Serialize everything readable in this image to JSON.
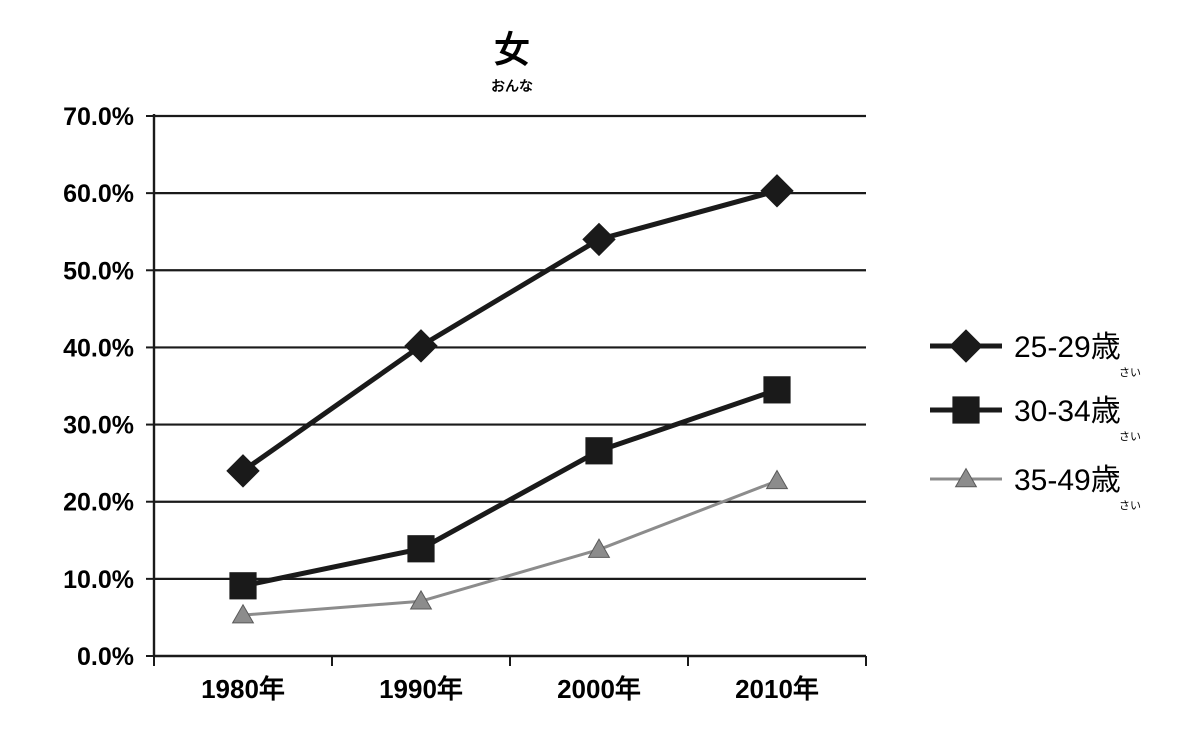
{
  "chart_data": {
    "type": "line",
    "title": "女",
    "title_ruby": "おんな",
    "categories": [
      "1980年",
      "1990年",
      "2000年",
      "2010年"
    ],
    "yticks": [
      "0.0%",
      "10.0%",
      "20.0%",
      "30.0%",
      "40.0%",
      "50.0%",
      "60.0%",
      "70.0%"
    ],
    "ylim": [
      0,
      70
    ],
    "grid": true,
    "legend_position": "right",
    "series": [
      {
        "name": "25-29歳",
        "name_ruby": "さい",
        "marker": "diamond",
        "color": "#1a1a1a",
        "values": [
          24.0,
          40.2,
          54.0,
          60.3
        ]
      },
      {
        "name": "30-34歳",
        "name_ruby": "さい",
        "marker": "square",
        "color": "#1a1a1a",
        "values": [
          9.1,
          13.9,
          26.6,
          34.5
        ]
      },
      {
        "name": "35-49歳",
        "name_ruby": "さい",
        "marker": "triangle",
        "color": "#8c8c8c",
        "values": [
          5.3,
          7.1,
          13.8,
          22.7
        ]
      }
    ]
  }
}
